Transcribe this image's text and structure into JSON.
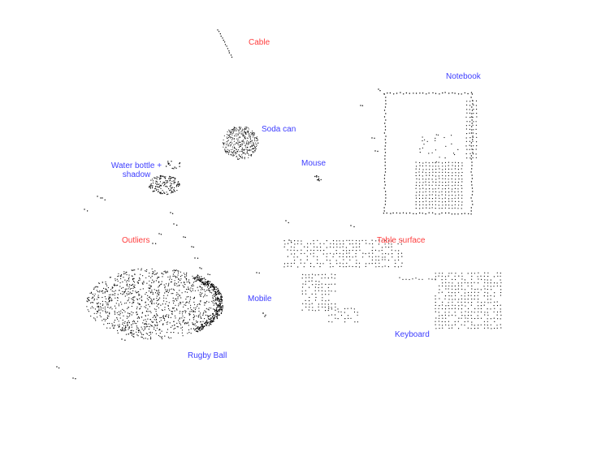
{
  "image": {
    "background": "#ffffff",
    "point_color": "#000000",
    "object_label_color": "#3d3dff",
    "noise_label_color": "#ff3d3d"
  },
  "labels": {
    "cable": "Cable",
    "notebook": "Notebook",
    "soda_can": "Soda can",
    "mouse": "Mouse",
    "water_bottle": "Water bottle +",
    "water_bottle_line2": "shadow",
    "outliers": "Outliers",
    "table_surface": "Table surface",
    "mobile": "Mobile",
    "keyboard": "Keyboard",
    "rugby_ball": "Rugby Ball"
  }
}
